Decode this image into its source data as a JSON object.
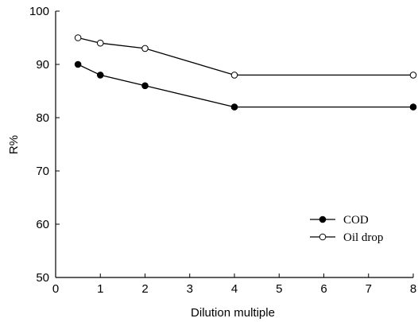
{
  "chart_data": {
    "type": "line",
    "xlabel": "Dilution multiple",
    "ylabel": "R%",
    "xlim": [
      0,
      8
    ],
    "ylim": [
      50,
      100
    ],
    "xticks": [
      "0",
      "1",
      "2",
      "3",
      "4",
      "5",
      "6",
      "7",
      "8"
    ],
    "yticks": [
      "50",
      "60",
      "70",
      "80",
      "90",
      "100"
    ],
    "grid": false,
    "legend_position": "bottom-right",
    "x": [
      0.5,
      1,
      2,
      4,
      8
    ],
    "series": [
      {
        "name": "COD",
        "marker": "filled-circle",
        "color": "#000000",
        "values": [
          90,
          88,
          86,
          82,
          82
        ]
      },
      {
        "name": "Oil drop",
        "marker": "open-circle",
        "color": "#000000",
        "values": [
          95,
          94,
          93,
          88,
          88
        ]
      }
    ]
  }
}
